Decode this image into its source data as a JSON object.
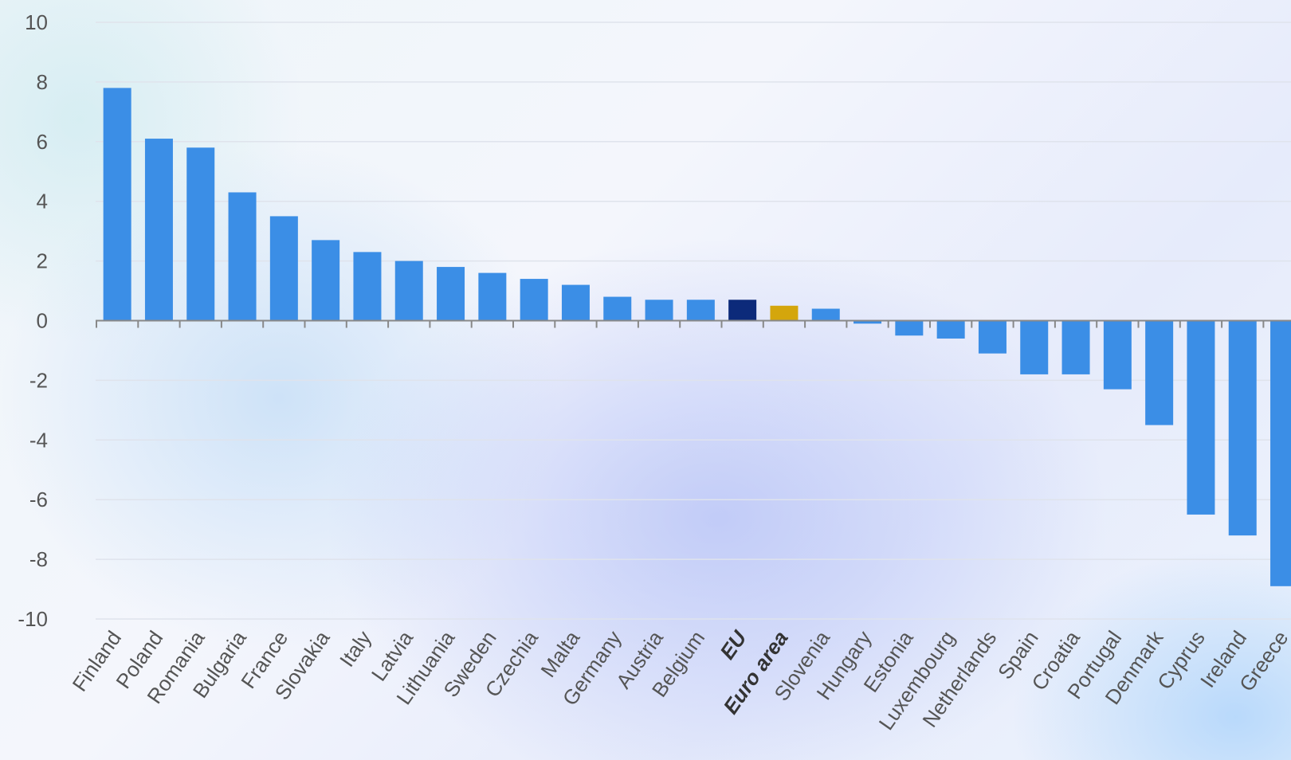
{
  "chart_data": {
    "type": "bar",
    "ylim": [
      -10,
      10
    ],
    "yticks": [
      10,
      8,
      6,
      4,
      2,
      0,
      -2,
      -4,
      -6,
      -8,
      -10
    ],
    "grid": true,
    "categories": [
      "Finland",
      "Poland",
      "Romania",
      "Bulgaria",
      "France",
      "Slovakia",
      "Italy",
      "Latvia",
      "Lithuania",
      "Sweden",
      "Czechia",
      "Malta",
      "Germany",
      "Austria",
      "Belgium",
      "EU",
      "Euro area",
      "Slovenia",
      "Hungary",
      "Estonia",
      "Luxembourg",
      "Netherlands",
      "Spain",
      "Croatia",
      "Portugal",
      "Denmark",
      "Cyprus",
      "Ireland",
      "Greece"
    ],
    "values": [
      7.8,
      6.1,
      5.8,
      4.3,
      3.5,
      2.7,
      2.3,
      2.0,
      1.8,
      1.6,
      1.4,
      1.2,
      0.8,
      0.7,
      0.7,
      0.7,
      0.5,
      0.4,
      -0.1,
      -0.5,
      -0.6,
      -1.1,
      -1.8,
      -1.8,
      -2.3,
      -3.5,
      -6.5,
      -7.2,
      -8.9
    ],
    "bold_categories": [
      "EU",
      "Euro area"
    ],
    "colors": {
      "default": "#3b8ee6",
      "EU": "#0c2a7a",
      "Euro area": "#d4a60c",
      "grid": "#dfe3ec",
      "axis": "#888888",
      "tick_label": "#555555"
    }
  }
}
